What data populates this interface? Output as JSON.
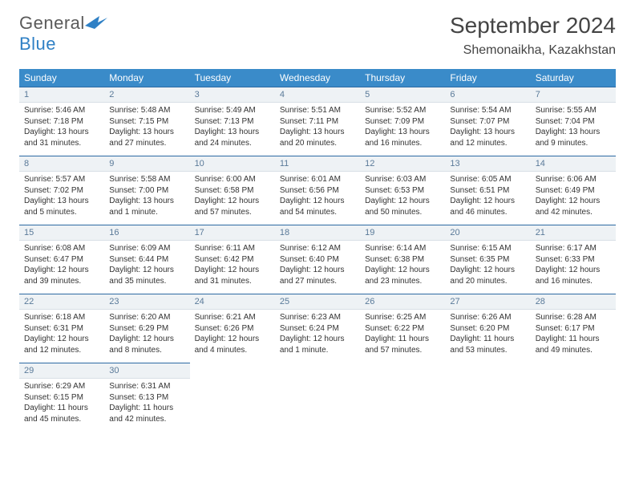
{
  "logo": {
    "word1": "General",
    "word2": "Blue"
  },
  "title": "September 2024",
  "location": "Shemonaikha, Kazakhstan",
  "colors": {
    "header_bg": "#3a8bc9",
    "header_text": "#ffffff",
    "daynum_bg": "#eef2f5",
    "daynum_text": "#5a7a99",
    "cell_border": "#2d6aa3",
    "body_text": "#333333",
    "logo_gray": "#5a5a5a",
    "logo_blue": "#2f80c5"
  },
  "weekdays": [
    "Sunday",
    "Monday",
    "Tuesday",
    "Wednesday",
    "Thursday",
    "Friday",
    "Saturday"
  ],
  "weeks": [
    [
      {
        "n": "1",
        "sr": "5:46 AM",
        "ss": "7:18 PM",
        "dl": "13 hours and 31 minutes."
      },
      {
        "n": "2",
        "sr": "5:48 AM",
        "ss": "7:15 PM",
        "dl": "13 hours and 27 minutes."
      },
      {
        "n": "3",
        "sr": "5:49 AM",
        "ss": "7:13 PM",
        "dl": "13 hours and 24 minutes."
      },
      {
        "n": "4",
        "sr": "5:51 AM",
        "ss": "7:11 PM",
        "dl": "13 hours and 20 minutes."
      },
      {
        "n": "5",
        "sr": "5:52 AM",
        "ss": "7:09 PM",
        "dl": "13 hours and 16 minutes."
      },
      {
        "n": "6",
        "sr": "5:54 AM",
        "ss": "7:07 PM",
        "dl": "13 hours and 12 minutes."
      },
      {
        "n": "7",
        "sr": "5:55 AM",
        "ss": "7:04 PM",
        "dl": "13 hours and 9 minutes."
      }
    ],
    [
      {
        "n": "8",
        "sr": "5:57 AM",
        "ss": "7:02 PM",
        "dl": "13 hours and 5 minutes."
      },
      {
        "n": "9",
        "sr": "5:58 AM",
        "ss": "7:00 PM",
        "dl": "13 hours and 1 minute."
      },
      {
        "n": "10",
        "sr": "6:00 AM",
        "ss": "6:58 PM",
        "dl": "12 hours and 57 minutes."
      },
      {
        "n": "11",
        "sr": "6:01 AM",
        "ss": "6:56 PM",
        "dl": "12 hours and 54 minutes."
      },
      {
        "n": "12",
        "sr": "6:03 AM",
        "ss": "6:53 PM",
        "dl": "12 hours and 50 minutes."
      },
      {
        "n": "13",
        "sr": "6:05 AM",
        "ss": "6:51 PM",
        "dl": "12 hours and 46 minutes."
      },
      {
        "n": "14",
        "sr": "6:06 AM",
        "ss": "6:49 PM",
        "dl": "12 hours and 42 minutes."
      }
    ],
    [
      {
        "n": "15",
        "sr": "6:08 AM",
        "ss": "6:47 PM",
        "dl": "12 hours and 39 minutes."
      },
      {
        "n": "16",
        "sr": "6:09 AM",
        "ss": "6:44 PM",
        "dl": "12 hours and 35 minutes."
      },
      {
        "n": "17",
        "sr": "6:11 AM",
        "ss": "6:42 PM",
        "dl": "12 hours and 31 minutes."
      },
      {
        "n": "18",
        "sr": "6:12 AM",
        "ss": "6:40 PM",
        "dl": "12 hours and 27 minutes."
      },
      {
        "n": "19",
        "sr": "6:14 AM",
        "ss": "6:38 PM",
        "dl": "12 hours and 23 minutes."
      },
      {
        "n": "20",
        "sr": "6:15 AM",
        "ss": "6:35 PM",
        "dl": "12 hours and 20 minutes."
      },
      {
        "n": "21",
        "sr": "6:17 AM",
        "ss": "6:33 PM",
        "dl": "12 hours and 16 minutes."
      }
    ],
    [
      {
        "n": "22",
        "sr": "6:18 AM",
        "ss": "6:31 PM",
        "dl": "12 hours and 12 minutes."
      },
      {
        "n": "23",
        "sr": "6:20 AM",
        "ss": "6:29 PM",
        "dl": "12 hours and 8 minutes."
      },
      {
        "n": "24",
        "sr": "6:21 AM",
        "ss": "6:26 PM",
        "dl": "12 hours and 4 minutes."
      },
      {
        "n": "25",
        "sr": "6:23 AM",
        "ss": "6:24 PM",
        "dl": "12 hours and 1 minute."
      },
      {
        "n": "26",
        "sr": "6:25 AM",
        "ss": "6:22 PM",
        "dl": "11 hours and 57 minutes."
      },
      {
        "n": "27",
        "sr": "6:26 AM",
        "ss": "6:20 PM",
        "dl": "11 hours and 53 minutes."
      },
      {
        "n": "28",
        "sr": "6:28 AM",
        "ss": "6:17 PM",
        "dl": "11 hours and 49 minutes."
      }
    ],
    [
      {
        "n": "29",
        "sr": "6:29 AM",
        "ss": "6:15 PM",
        "dl": "11 hours and 45 minutes."
      },
      {
        "n": "30",
        "sr": "6:31 AM",
        "ss": "6:13 PM",
        "dl": "11 hours and 42 minutes."
      },
      null,
      null,
      null,
      null,
      null
    ]
  ],
  "labels": {
    "sunrise": "Sunrise:",
    "sunset": "Sunset:",
    "daylight": "Daylight:"
  }
}
